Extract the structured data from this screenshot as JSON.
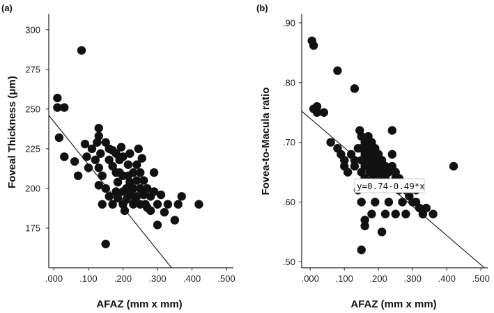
{
  "chart_data": [
    {
      "type": "scatter",
      "panel_label": "(a)",
      "xlabel": "AFAZ (mm x mm)",
      "ylabel": "Foveal Thickness (μm)",
      "xlim": [
        -0.015,
        0.52
      ],
      "ylim": [
        150,
        310
      ],
      "xticks": [
        0.0,
        0.1,
        0.2,
        0.3,
        0.4,
        0.5
      ],
      "xtick_labels": [
        ".000",
        ".100",
        ".200",
        ".300",
        ".400",
        ".500"
      ],
      "yticks": [
        175,
        200,
        225,
        250,
        275,
        300
      ],
      "ytick_labels": [
        "175",
        "200",
        "225",
        "250",
        "275",
        "300"
      ],
      "fit_line": {
        "intercept": 242,
        "slope": -270
      },
      "grid": false,
      "points": [
        [
          0.01,
          257
        ],
        [
          0.01,
          251
        ],
        [
          0.03,
          251
        ],
        [
          0.08,
          287
        ],
        [
          0.015,
          232
        ],
        [
          0.03,
          220
        ],
        [
          0.06,
          217
        ],
        [
          0.07,
          208
        ],
        [
          0.09,
          228
        ],
        [
          0.095,
          220
        ],
        [
          0.1,
          213
        ],
        [
          0.11,
          225
        ],
        [
          0.12,
          218
        ],
        [
          0.125,
          229
        ],
        [
          0.13,
          238
        ],
        [
          0.13,
          233
        ],
        [
          0.135,
          222
        ],
        [
          0.13,
          213
        ],
        [
          0.14,
          208
        ],
        [
          0.15,
          200
        ],
        [
          0.13,
          202
        ],
        [
          0.14,
          190
        ],
        [
          0.15,
          229
        ],
        [
          0.16,
          225
        ],
        [
          0.16,
          218
        ],
        [
          0.17,
          224
        ],
        [
          0.17,
          214
        ],
        [
          0.18,
          222
        ],
        [
          0.18,
          210
        ],
        [
          0.16,
          195
        ],
        [
          0.17,
          190
        ],
        [
          0.18,
          198
        ],
        [
          0.185,
          204
        ],
        [
          0.19,
          210
        ],
        [
          0.19,
          218
        ],
        [
          0.195,
          226
        ],
        [
          0.2,
          220
        ],
        [
          0.2,
          208
        ],
        [
          0.2,
          198
        ],
        [
          0.2,
          190
        ],
        [
          0.21,
          200
        ],
        [
          0.21,
          193
        ],
        [
          0.215,
          208
        ],
        [
          0.215,
          215
        ],
        [
          0.22,
          222
        ],
        [
          0.22,
          204
        ],
        [
          0.22,
          196
        ],
        [
          0.23,
          190
        ],
        [
          0.23,
          200
        ],
        [
          0.23,
          210
        ],
        [
          0.24,
          215
        ],
        [
          0.24,
          205
        ],
        [
          0.24,
          195
        ],
        [
          0.245,
          225
        ],
        [
          0.25,
          210
        ],
        [
          0.25,
          200
        ],
        [
          0.25,
          190
        ],
        [
          0.255,
          219
        ],
        [
          0.26,
          205
        ],
        [
          0.26,
          196
        ],
        [
          0.265,
          190
        ],
        [
          0.27,
          200
        ],
        [
          0.28,
          195
        ],
        [
          0.28,
          186
        ],
        [
          0.29,
          210
        ],
        [
          0.29,
          198
        ],
        [
          0.3,
          190
        ],
        [
          0.31,
          196
        ],
        [
          0.3,
          177
        ],
        [
          0.32,
          185
        ],
        [
          0.33,
          190
        ],
        [
          0.35,
          180
        ],
        [
          0.36,
          190
        ],
        [
          0.37,
          195
        ],
        [
          0.42,
          190
        ],
        [
          0.15,
          165
        ],
        [
          0.185,
          194
        ],
        [
          0.205,
          186
        ],
        [
          0.235,
          192
        ],
        [
          0.27,
          188
        ]
      ]
    },
    {
      "type": "scatter",
      "panel_label": "(b)",
      "xlabel": "AFAZ (mm x mm)",
      "ylabel": "Fovea-to-Macula ratio",
      "xlim": [
        -0.025,
        0.52
      ],
      "ylim": [
        0.49,
        0.915
      ],
      "xticks": [
        0.0,
        0.1,
        0.2,
        0.3,
        0.4,
        0.5
      ],
      "xtick_labels": [
        ".000",
        ".100",
        ".200",
        ".300",
        ".400",
        ".500"
      ],
      "yticks": [
        0.5,
        0.6,
        0.7,
        0.8,
        0.9
      ],
      "ytick_labels": [
        ".50",
        ".60",
        ".70",
        ".80",
        ".90"
      ],
      "fit_line": {
        "intercept": 0.74,
        "slope": -0.49
      },
      "grid": false,
      "annotation": "y=0.74-0.49*x",
      "points": [
        [
          0.005,
          0.87
        ],
        [
          0.01,
          0.862
        ],
        [
          0.01,
          0.756
        ],
        [
          0.02,
          0.76
        ],
        [
          0.02,
          0.75
        ],
        [
          0.04,
          0.75
        ],
        [
          0.08,
          0.82
        ],
        [
          0.13,
          0.79
        ],
        [
          0.06,
          0.7
        ],
        [
          0.08,
          0.69
        ],
        [
          0.09,
          0.68
        ],
        [
          0.1,
          0.67
        ],
        [
          0.1,
          0.66
        ],
        [
          0.11,
          0.65
        ],
        [
          0.12,
          0.68
        ],
        [
          0.13,
          0.67
        ],
        [
          0.13,
          0.66
        ],
        [
          0.14,
          0.69
        ],
        [
          0.145,
          0.72
        ],
        [
          0.15,
          0.71
        ],
        [
          0.15,
          0.69
        ],
        [
          0.15,
          0.67
        ],
        [
          0.15,
          0.65
        ],
        [
          0.16,
          0.7
        ],
        [
          0.16,
          0.68
        ],
        [
          0.16,
          0.66
        ],
        [
          0.16,
          0.64
        ],
        [
          0.17,
          0.71
        ],
        [
          0.17,
          0.69
        ],
        [
          0.17,
          0.67
        ],
        [
          0.175,
          0.65
        ],
        [
          0.18,
          0.7
        ],
        [
          0.18,
          0.68
        ],
        [
          0.18,
          0.66
        ],
        [
          0.185,
          0.64
        ],
        [
          0.19,
          0.69
        ],
        [
          0.19,
          0.67
        ],
        [
          0.19,
          0.65
        ],
        [
          0.2,
          0.68
        ],
        [
          0.2,
          0.66
        ],
        [
          0.2,
          0.64
        ],
        [
          0.21,
          0.67
        ],
        [
          0.21,
          0.65
        ],
        [
          0.22,
          0.66
        ],
        [
          0.22,
          0.64
        ],
        [
          0.23,
          0.65
        ],
        [
          0.23,
          0.63
        ],
        [
          0.24,
          0.72
        ],
        [
          0.24,
          0.68
        ],
        [
          0.24,
          0.66
        ],
        [
          0.25,
          0.65
        ],
        [
          0.25,
          0.64
        ],
        [
          0.26,
          0.64
        ],
        [
          0.26,
          0.62
        ],
        [
          0.27,
          0.63
        ],
        [
          0.28,
          0.62
        ],
        [
          0.29,
          0.61
        ],
        [
          0.3,
          0.63
        ],
        [
          0.31,
          0.62
        ],
        [
          0.31,
          0.6
        ],
        [
          0.32,
          0.59
        ],
        [
          0.33,
          0.58
        ],
        [
          0.34,
          0.59
        ],
        [
          0.36,
          0.58
        ],
        [
          0.42,
          0.66
        ],
        [
          0.14,
          0.62
        ],
        [
          0.15,
          0.6
        ],
        [
          0.16,
          0.57
        ],
        [
          0.16,
          0.56
        ],
        [
          0.15,
          0.52
        ],
        [
          0.18,
          0.58
        ],
        [
          0.19,
          0.6
        ],
        [
          0.21,
          0.55
        ],
        [
          0.22,
          0.58
        ],
        [
          0.23,
          0.6
        ],
        [
          0.25,
          0.58
        ],
        [
          0.27,
          0.6
        ],
        [
          0.28,
          0.58
        ],
        [
          0.3,
          0.6
        ]
      ]
    }
  ]
}
